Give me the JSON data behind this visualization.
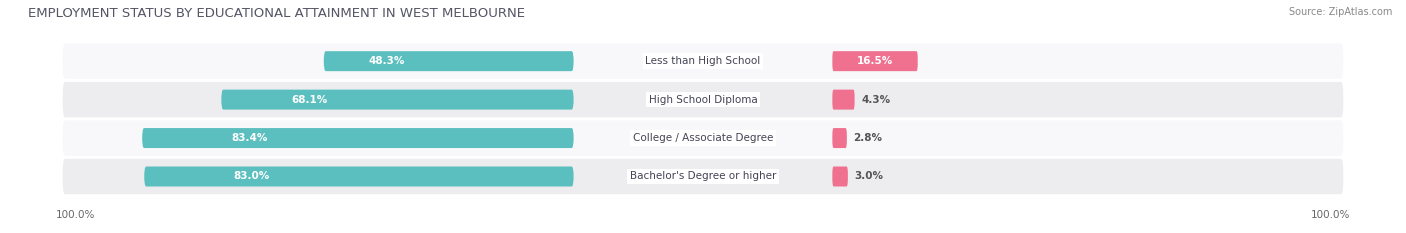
{
  "title": "EMPLOYMENT STATUS BY EDUCATIONAL ATTAINMENT IN WEST MELBOURNE",
  "source": "Source: ZipAtlas.com",
  "categories": [
    "Less than High School",
    "High School Diploma",
    "College / Associate Degree",
    "Bachelor's Degree or higher"
  ],
  "labor_force_pct": [
    48.3,
    68.1,
    83.4,
    83.0
  ],
  "unemployed_pct": [
    16.5,
    4.3,
    2.8,
    3.0
  ],
  "labor_force_color": "#5BBFBF",
  "unemployed_color": "#F07090",
  "row_bg_color_odd": "#EDEDF0",
  "row_bg_color_even": "#F8F8FA",
  "axis_label_left": "100.0%",
  "axis_label_right": "100.0%",
  "title_fontsize": 9.5,
  "axis_label_fontsize": 7.5,
  "bar_label_fontsize": 7.5,
  "category_fontsize": 7.5,
  "legend_fontsize": 7.5,
  "fig_width": 14.06,
  "fig_height": 2.33,
  "dpi": 100
}
